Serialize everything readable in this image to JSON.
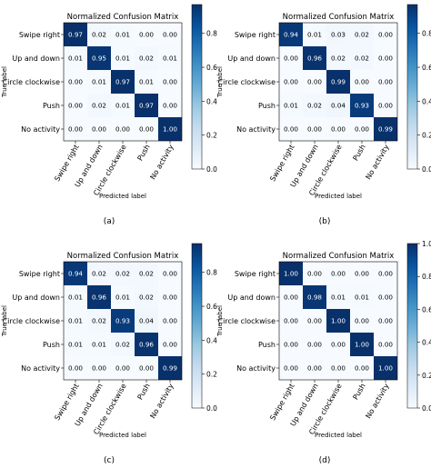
{
  "panels": [
    {
      "caption": "(a)",
      "chart_data": {
        "type": "heatmap",
        "title": "Normalized Confusion Matrix",
        "xlabel": "Predicted label",
        "ylabel": "True label",
        "categories": [
          "Swipe right",
          "Up and down",
          "Circle clockwise",
          "Push",
          "No activity"
        ],
        "matrix": [
          [
            "0.97",
            "0.02",
            "0.01",
            "0.00",
            "0.00"
          ],
          [
            "0.01",
            "0.95",
            "0.01",
            "0.02",
            "0.01"
          ],
          [
            "0.00",
            "0.01",
            "0.97",
            "0.01",
            "0.00"
          ],
          [
            "0.00",
            "0.02",
            "0.01",
            "0.97",
            "0.00"
          ],
          [
            "0.00",
            "0.00",
            "0.00",
            "0.00",
            "1.00"
          ]
        ],
        "colorbar": {
          "ticks": [
            "0.0",
            "0.2",
            "0.4",
            "0.6",
            "0.8"
          ],
          "range": [
            0,
            0.97
          ]
        }
      }
    },
    {
      "caption": "(b)",
      "chart_data": {
        "type": "heatmap",
        "title": "Normalized Confusion Matrix",
        "xlabel": "Predicted label",
        "ylabel": "True label",
        "categories": [
          "Swipe right",
          "Up and down",
          "Circle clockwise",
          "Push",
          "No activity"
        ],
        "matrix": [
          [
            "0.94",
            "0.01",
            "0.03",
            "0.02",
            "0.00"
          ],
          [
            "0.00",
            "0.96",
            "0.02",
            "0.02",
            "0.00"
          ],
          [
            "0.00",
            "0.00",
            "0.99",
            "0.00",
            "0.00"
          ],
          [
            "0.01",
            "0.02",
            "0.04",
            "0.93",
            "0.00"
          ],
          [
            "0.00",
            "0.00",
            "0.00",
            "0.00",
            "0.99"
          ]
        ],
        "colorbar": {
          "ticks": [
            "0.0",
            "0.2",
            "0.4",
            "0.6",
            "0.8"
          ],
          "range": [
            0,
            0.97
          ]
        }
      }
    },
    {
      "caption": "(c)",
      "chart_data": {
        "type": "heatmap",
        "title": "Normalized Confusion Matrix",
        "xlabel": "Predicted label",
        "ylabel": "True label",
        "categories": [
          "Swipe right",
          "Up and down",
          "Circle clockwise",
          "Push",
          "No activity"
        ],
        "matrix": [
          [
            "0.94",
            "0.02",
            "0.02",
            "0.02",
            "0.00"
          ],
          [
            "0.01",
            "0.96",
            "0.01",
            "0.02",
            "0.00"
          ],
          [
            "0.01",
            "0.02",
            "0.93",
            "0.04",
            "0.00"
          ],
          [
            "0.01",
            "0.01",
            "0.02",
            "0.96",
            "0.00"
          ],
          [
            "0.00",
            "0.00",
            "0.00",
            "0.00",
            "0.99"
          ]
        ],
        "colorbar": {
          "ticks": [
            "0.0",
            "0.2",
            "0.4",
            "0.6",
            "0.8"
          ],
          "range": [
            0,
            0.97
          ]
        }
      }
    },
    {
      "caption": "(d)",
      "chart_data": {
        "type": "heatmap",
        "title": "Normalized Confusion Matrix",
        "xlabel": "Predicted label",
        "ylabel": "True label",
        "categories": [
          "Swipe right",
          "Up and down",
          "Circle clockwise",
          "Push",
          "No activity"
        ],
        "matrix": [
          [
            "1.00",
            "0.00",
            "0.00",
            "0.00",
            "0.00"
          ],
          [
            "0.00",
            "0.98",
            "0.01",
            "0.01",
            "0.00"
          ],
          [
            "0.00",
            "0.00",
            "1.00",
            "0.00",
            "0.00"
          ],
          [
            "0.00",
            "0.00",
            "0.00",
            "1.00",
            "0.00"
          ],
          [
            "0.00",
            "0.00",
            "0.00",
            "0.00",
            "1.00"
          ]
        ],
        "colorbar": {
          "ticks": [
            "0.0",
            "0.2",
            "0.4",
            "0.6",
            "0.8",
            "1.0"
          ],
          "range": [
            0,
            1.0
          ]
        }
      }
    }
  ]
}
